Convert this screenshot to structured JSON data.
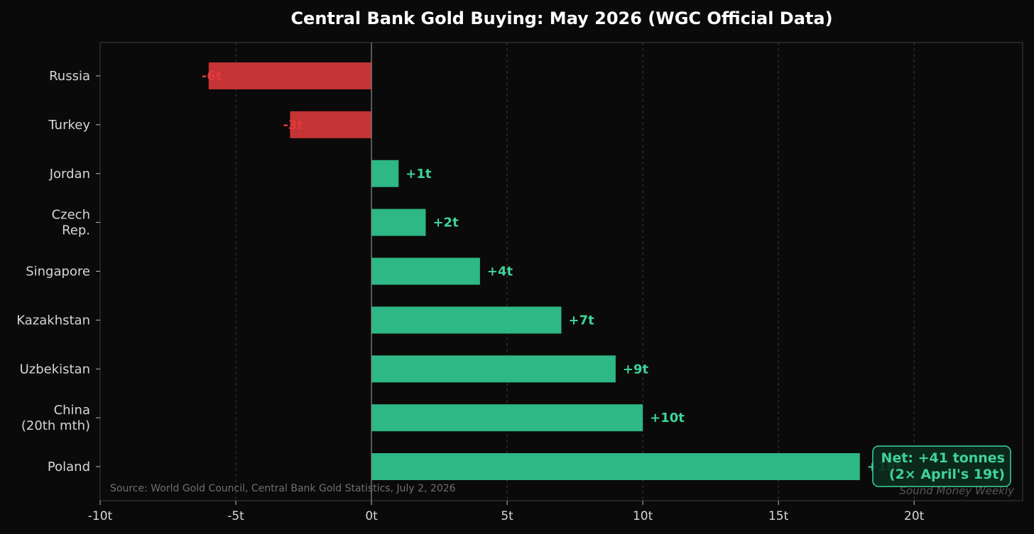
{
  "chart_data": {
    "type": "bar",
    "orientation": "horizontal",
    "title": "Central Bank Gold Buying: May 2026 (WGC Official Data)",
    "categories": [
      [
        "Russia"
      ],
      [
        "Turkey"
      ],
      [
        "Jordan"
      ],
      [
        "Czech",
        "Rep."
      ],
      [
        "Singapore"
      ],
      [
        "Kazakhstan"
      ],
      [
        "Uzbekistan"
      ],
      [
        "China",
        "(20th mth)"
      ],
      [
        "Poland"
      ]
    ],
    "values": [
      -6,
      -3,
      1,
      2,
      4,
      7,
      9,
      10,
      18
    ],
    "value_labels": [
      "-6t",
      "-3t",
      "+1t",
      "+2t",
      "+4t",
      "+7t",
      "+9t",
      "+10t",
      "+18t"
    ],
    "x_ticks": [
      -10,
      -5,
      0,
      5,
      10,
      15,
      20
    ],
    "x_tick_labels": [
      "-10t",
      "-5t",
      "0t",
      "5t",
      "10t",
      "15t",
      "20t"
    ],
    "xlim": [
      -10,
      24
    ],
    "xlabel": "",
    "ylabel": "",
    "grid": "vertical-dashed",
    "annotation": {
      "lines": [
        "Net: +41 tonnes",
        "(2× April's 19t)"
      ],
      "placement": "bottom-right"
    },
    "source": "Source: World Gold Council, Central Bank Gold Statistics, July 2, 2026",
    "watermark": "Sound Money Weekly",
    "colors": {
      "positive": "#2db886",
      "negative": "#c43336",
      "positive_label": "#3fd39a",
      "negative_label": "#e0393c",
      "background": "#0a0a0a",
      "text": "#d6d6d6"
    }
  }
}
